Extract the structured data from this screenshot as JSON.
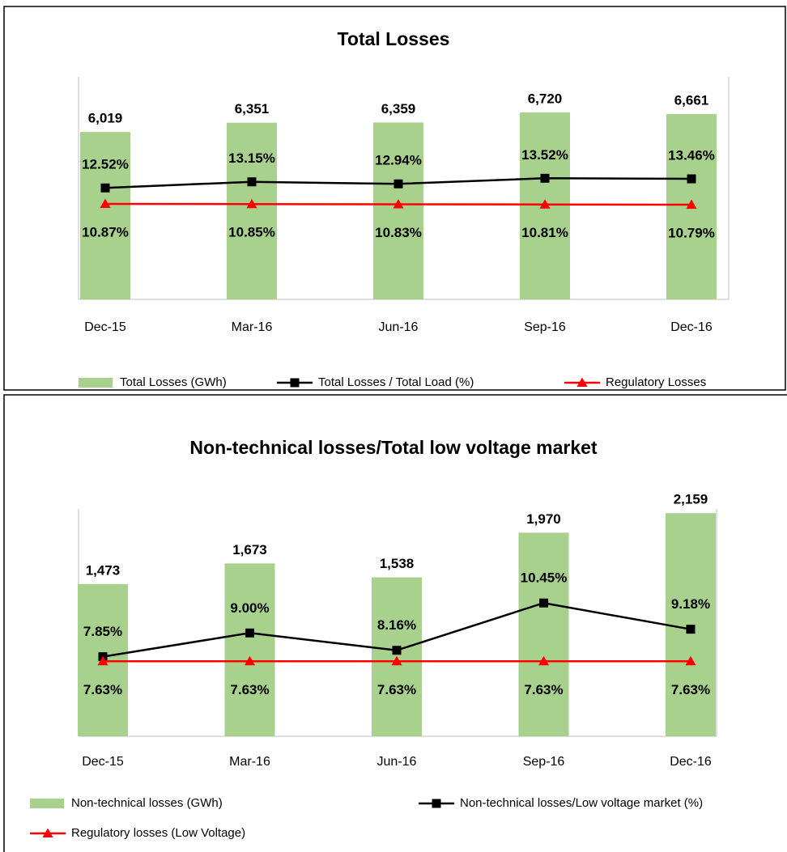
{
  "chart_data": [
    {
      "type": "combo",
      "title": "Total Losses",
      "categories": [
        "Dec-15",
        "Mar-16",
        "Jun-16",
        "Sep-16",
        "Dec-16"
      ],
      "ylim": [
        0,
        8000
      ],
      "y2lim": [
        1,
        24
      ],
      "series": [
        {
          "name": "Total Losses (GWh)",
          "type": "bar",
          "color": "#a9d18e",
          "values": [
            6019,
            6351,
            6359,
            6720,
            6661
          ],
          "value_labels": [
            "6,019",
            "6,351",
            "6,359",
            "6,720",
            "6,661"
          ]
        },
        {
          "name": "Total Losses / Total Load (%)",
          "type": "line",
          "axis": "y2",
          "marker": "square",
          "color": "#000000",
          "values": [
            12.52,
            13.15,
            12.94,
            13.52,
            13.46
          ],
          "value_labels": [
            "12.52%",
            "13.15%",
            "12.94%",
            "13.52%",
            "13.46%"
          ]
        },
        {
          "name": "Regulatory Losses",
          "type": "line",
          "axis": "y2",
          "marker": "triangle",
          "color": "#ff0000",
          "values": [
            10.87,
            10.85,
            10.83,
            10.81,
            10.79
          ],
          "value_labels": [
            "10.87%",
            "10.85%",
            "10.83%",
            "10.81%",
            "10.79%"
          ]
        }
      ]
    },
    {
      "type": "combo",
      "title": "Non-technical losses/Total low voltage market",
      "categories": [
        "Dec-15",
        "Mar-16",
        "Jun-16",
        "Sep-16",
        "Dec-16"
      ],
      "ylim": [
        0,
        2200
      ],
      "y2lim": [
        4,
        15
      ],
      "series": [
        {
          "name": "Non-technical losses (GWh)",
          "type": "bar",
          "color": "#a9d18e",
          "values": [
            1473,
            1673,
            1538,
            1970,
            2159
          ],
          "value_labels": [
            "1,473",
            "1,673",
            "1,538",
            "1,970",
            "2,159"
          ]
        },
        {
          "name": "Non-technical losses/Low voltage market (%)",
          "type": "line",
          "axis": "y2",
          "marker": "square",
          "color": "#000000",
          "values": [
            7.85,
            9.0,
            8.16,
            10.45,
            9.18
          ],
          "value_labels": [
            "7.85%",
            "9.00%",
            "8.16%",
            "10.45%",
            "9.18%"
          ]
        },
        {
          "name": "Regulatory losses (Low Voltage)",
          "type": "line",
          "axis": "y2",
          "marker": "triangle",
          "color": "#ff0000",
          "values": [
            7.63,
            7.63,
            7.63,
            7.63,
            7.63
          ],
          "value_labels": [
            "7.63%",
            "7.63%",
            "7.63%",
            "7.63%",
            "7.63%"
          ]
        }
      ]
    }
  ]
}
